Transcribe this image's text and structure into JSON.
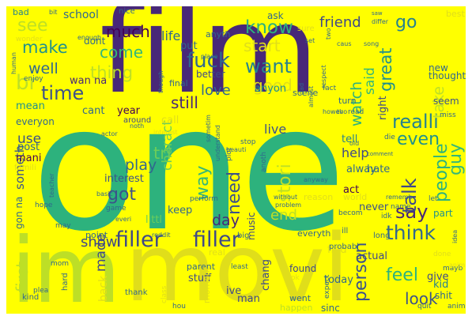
{
  "words": [
    {
      "text": "one",
      "color": "#2db27d"
    },
    {
      "text": "film",
      "color": "#482878"
    },
    {
      "text": "movi",
      "color": "#e0de1a"
    },
    {
      "text": "im",
      "color": "#bddf26"
    },
    {
      "text": "filler",
      "color": "#3e4989"
    },
    {
      "text": "filler",
      "color": "#3e4989"
    },
    {
      "text": "fuck",
      "color": "#31688e"
    },
    {
      "text": "want",
      "color": "#26828e"
    },
    {
      "text": "make",
      "color": "#21918c"
    },
    {
      "text": "come",
      "color": "#35b779"
    },
    {
      "text": "time",
      "color": "#3b528b"
    },
    {
      "text": "much",
      "color": "#440154"
    },
    {
      "text": "love",
      "color": "#31688e"
    },
    {
      "text": "know",
      "color": "#2db27d"
    },
    {
      "text": "go",
      "color": "#26828e"
    },
    {
      "text": "friend",
      "color": "#3e4989"
    },
    {
      "text": "think",
      "color": "#31688e"
    },
    {
      "text": "realli",
      "color": "#26828e"
    },
    {
      "text": "even",
      "color": "#21918c"
    },
    {
      "text": "feel",
      "color": "#2db27d"
    },
    {
      "text": "look",
      "color": "#3b528b"
    },
    {
      "text": "say",
      "color": "#482878"
    },
    {
      "text": "talk",
      "color": "#3e4989"
    },
    {
      "text": "people",
      "color": "#2db27d"
    },
    {
      "text": "guy",
      "color": "#35b779"
    },
    {
      "text": "still",
      "color": "#482878"
    },
    {
      "text": "got",
      "color": "#3b528b"
    },
    {
      "text": "play",
      "color": "#31688e"
    },
    {
      "text": "show",
      "color": "#3e4989"
    },
    {
      "text": "day",
      "color": "#482878"
    },
    {
      "text": "need",
      "color": "#3b528b"
    },
    {
      "text": "live",
      "color": "#3b528b"
    },
    {
      "text": "help",
      "color": "#3e4989"
    },
    {
      "text": "use",
      "color": "#3b528b"
    },
    {
      "text": "well",
      "color": "#31688e"
    },
    {
      "text": "life",
      "color": "#31688e"
    },
    {
      "text": "thing",
      "color": "#bddf26"
    },
    {
      "text": "made",
      "color": "#3e4989"
    },
    {
      "text": "person",
      "color": "#3b528b"
    },
    {
      "text": "watch",
      "color": "#2db27d"
    },
    {
      "text": "great",
      "color": "#21918c"
    },
    {
      "text": "said",
      "color": "#35b779"
    },
    {
      "text": "take",
      "color": "#bddf26"
    },
    {
      "text": "stori",
      "color": "#bddf26"
    },
    {
      "text": "end",
      "color": "#bddf26"
    },
    {
      "text": "first",
      "color": "#bddf26"
    },
    {
      "text": "see",
      "color": "#bddf26"
    },
    {
      "text": "br",
      "color": "#bddf26"
    },
    {
      "text": "start",
      "color": "#e0de1a"
    },
    {
      "text": "good",
      "color": "#e0de1a"
    },
    {
      "text": "tri",
      "color": "#6ccd5a"
    },
    {
      "text": "way",
      "color": "#35b779"
    },
    {
      "text": "charact",
      "color": "#6ccd5a"
    },
    {
      "text": "someth",
      "color": "#3b528b"
    },
    {
      "text": "school",
      "color": "#31688e"
    },
    {
      "text": "wan na",
      "color": "#482878"
    },
    {
      "text": "tell",
      "color": "#26828e"
    },
    {
      "text": "post",
      "color": "#31688e"
    },
    {
      "text": "mean",
      "color": "#21918c"
    },
    {
      "text": "cant",
      "color": "#31688e"
    },
    {
      "text": "year",
      "color": "#440154"
    },
    {
      "text": "interest",
      "color": "#3b528b"
    },
    {
      "text": "keep",
      "color": "#31688e"
    },
    {
      "text": "littl",
      "color": "#6ccd5a"
    },
    {
      "text": "hate",
      "color": "#31688e"
    },
    {
      "text": "alway",
      "color": "#31688e"
    },
    {
      "text": "act",
      "color": "#440154"
    },
    {
      "text": "never",
      "color": "#3b528b"
    },
    {
      "text": "actual",
      "color": "#3e4989"
    },
    {
      "text": "give",
      "color": "#3e4989"
    },
    {
      "text": "seem",
      "color": "#3b528b"
    },
    {
      "text": "today",
      "color": "#31688e"
    },
    {
      "text": "ive",
      "color": "#3e4989"
    },
    {
      "text": "man",
      "color": "#3e4989"
    },
    {
      "text": "stuff",
      "color": "#3e4989"
    },
    {
      "text": "anyon",
      "color": "#21918c"
    },
    {
      "text": "mani",
      "color": "#440154"
    },
    {
      "text": "put",
      "color": "#31688e"
    },
    {
      "text": "dont",
      "color": "#31688e"
    },
    {
      "text": "new",
      "color": "#31688e"
    },
    {
      "text": "thought",
      "color": "#31688e"
    },
    {
      "text": "right",
      "color": "#3e4989"
    },
    {
      "text": "better",
      "color": "#3e4989"
    },
    {
      "text": "found",
      "color": "#3e4989"
    },
    {
      "text": "chang",
      "color": "#3e4989"
    },
    {
      "text": "part",
      "color": "#21918c"
    },
    {
      "text": "kid",
      "color": "#26828e"
    },
    {
      "text": "shit",
      "color": "#31688e"
    },
    {
      "text": "music",
      "color": "#3e4989"
    },
    {
      "text": "gon na",
      "color": "#31688e"
    },
    {
      "text": "sinc",
      "color": "#31688e"
    },
    {
      "text": "ask",
      "color": "#31688e"
    },
    {
      "text": "bad",
      "color": "#26828e"
    },
    {
      "text": "nice",
      "color": "#31688e"
    },
    {
      "text": "anyth",
      "color": "#31688e"
    },
    {
      "text": "call",
      "color": "#e0de1a"
    },
    {
      "text": "find",
      "color": "#e0de1a"
    },
    {
      "text": "final",
      "color": "#31688e"
    },
    {
      "text": "everyon",
      "color": "#31688e"
    },
    {
      "text": "point",
      "color": "#31688e"
    },
    {
      "text": "went",
      "color": "#31688e"
    },
    {
      "text": "happen",
      "color": "#bddf26"
    },
    {
      "text": "back",
      "color": "#e0de1a"
    },
    {
      "text": "around",
      "color": "#3e4989"
    },
    {
      "text": "reason",
      "color": "#e0de1a"
    },
    {
      "text": "world",
      "color": "#e0de1a"
    },
    {
      "text": "best",
      "color": "#e0de1a"
    },
    {
      "text": "enjoy",
      "color": "#31688e"
    },
    {
      "text": "scene",
      "color": "#31688e"
    },
    {
      "text": "turn",
      "color": "#31688e"
    },
    {
      "text": "read",
      "color": "#31688e"
    },
    {
      "text": "fact",
      "color": "#31688e"
    },
    {
      "text": "game",
      "color": "#31688e"
    },
    {
      "text": "let",
      "color": "#31688e"
    },
    {
      "text": "idk",
      "color": "#31688e"
    },
    {
      "text": "name",
      "color": "#31688e"
    },
    {
      "text": "plot",
      "color": "#31688e"
    },
    {
      "text": "hope",
      "color": "#31688e"
    },
    {
      "text": "may",
      "color": "#31688e"
    },
    {
      "text": "kind",
      "color": "#31688e"
    },
    {
      "text": "hard",
      "color": "#31688e"
    },
    {
      "text": "thank",
      "color": "#31688e"
    },
    {
      "text": "real",
      "color": "#e0de1a"
    },
    {
      "text": "parent",
      "color": "#31688e"
    },
    {
      "text": "big",
      "color": "#31688e"
    },
    {
      "text": "ill",
      "color": "#31688e"
    },
    {
      "text": "long",
      "color": "#31688e"
    },
    {
      "text": "probabl",
      "color": "#31688e"
    },
    {
      "text": "perform",
      "color": "#31688e"
    },
    {
      "text": "everyth",
      "color": "#31688e"
    },
    {
      "text": "done",
      "color": "#e0de1a"
    },
    {
      "text": "mayb",
      "color": "#31688e"
    },
    {
      "text": "quit",
      "color": "#31688e"
    },
    {
      "text": "hou",
      "color": "#31688e"
    },
    {
      "text": "anim",
      "color": "#31688e"
    },
    {
      "text": "mom",
      "color": "#31688e"
    },
    {
      "text": "reddit",
      "color": "#31688e"
    },
    {
      "text": "plea",
      "color": "#31688e"
    },
    {
      "text": "miss",
      "color": "#31688e"
    },
    {
      "text": "becom",
      "color": "#31688e"
    },
    {
      "text": "die",
      "color": "#31688e"
    },
    {
      "text": "stop",
      "color": "#31688e"
    },
    {
      "text": "basic",
      "color": "#31688e"
    },
    {
      "text": "actor",
      "color": "#31688e"
    },
    {
      "text": "interest",
      "color": "#e0de1a"
    },
    {
      "text": "beauti",
      "color": "#31688e"
    },
    {
      "text": "anoth",
      "color": "#31688e"
    },
    {
      "text": "without",
      "color": "#31688e"
    },
    {
      "text": "problem",
      "color": "#31688e"
    },
    {
      "text": "dad",
      "color": "#31688e"
    },
    {
      "text": "almost",
      "color": "#31688e"
    },
    {
      "text": "howev",
      "color": "#31688e"
    },
    {
      "text": "everi",
      "color": "#31688e"
    },
    {
      "text": "teacher",
      "color": "#31688e"
    },
    {
      "text": "famili",
      "color": "#e0de1a"
    },
    {
      "text": "moment",
      "color": "#e0de1a"
    },
    {
      "text": "least",
      "color": "#31688e"
    },
    {
      "text": "class",
      "color": "#e0de1a"
    },
    {
      "text": "expect",
      "color": "#31688e"
    },
    {
      "text": "tho",
      "color": "#31688e"
    },
    {
      "text": "noth",
      "color": "#31688e"
    },
    {
      "text": "sometim",
      "color": "#31688e"
    },
    {
      "text": "understand",
      "color": "#31688e"
    },
    {
      "text": "human",
      "color": "#31688e"
    },
    {
      "text": "enough",
      "color": "#31688e"
    },
    {
      "text": "place",
      "color": "#31688e"
    },
    {
      "text": "set",
      "color": "#31688e"
    },
    {
      "text": "caus",
      "color": "#31688e"
    },
    {
      "text": "song",
      "color": "#31688e"
    },
    {
      "text": "differ",
      "color": "#31688e"
    },
    {
      "text": "saw",
      "color": "#31688e"
    },
    {
      "text": "two",
      "color": "#31688e"
    },
    {
      "text": "wonder",
      "color": "#e0de1a"
    },
    {
      "text": "bit",
      "color": "#31688e"
    },
    {
      "text": "old",
      "color": "#31688e"
    },
    {
      "text": "comment",
      "color": "#31688e"
    },
    {
      "text": "anyway",
      "color": "#31688e"
    },
    {
      "text": "rememb",
      "color": "#31688e"
    },
    {
      "text": "idea",
      "color": "#31688e"
    },
    {
      "text": "ok",
      "color": "#e0de1a"
    },
    {
      "text": "though",
      "color": "#31688e"
    },
    {
      "text": "respect",
      "color": "#31688e"
    },
    {
      "text": "sure",
      "color": "#e0de1a"
    },
    {
      "text": "anim",
      "color": "#e0de1a"
    }
  ]
}
